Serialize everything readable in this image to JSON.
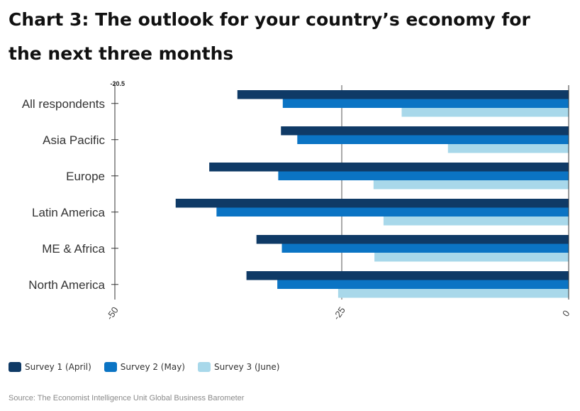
{
  "title": "Chart 3: The outlook for your country’s economy for the next three months",
  "source": "Source: The Economist Intelligence Unit Global Business Barometer",
  "colors": {
    "survey1": "#0f3a66",
    "survey2": "#0b74c4",
    "survey3": "#a8d8ea",
    "zero_line": "#333333",
    "grid_line": "#555555"
  },
  "chart_data": {
    "type": "bar",
    "orientation": "horizontal",
    "title": "Chart 3: The outlook for your country’s economy for the next three months",
    "categories": [
      "All respondents",
      "Asia Pacific",
      "Europe",
      "Latin America",
      "ME & Africa",
      "North America"
    ],
    "series": [
      {
        "name": "Survey 1 (April)",
        "color": "#0f3a66",
        "values": [
          -36.5,
          -31.7,
          -39.6,
          -43.3,
          -34.4,
          -35.5
        ]
      },
      {
        "name": "Survey 2 (May)",
        "color": "#0b74c4",
        "values": [
          -31.5,
          -29.9,
          -32.0,
          -38.8,
          -31.6,
          -32.1
        ]
      },
      {
        "name": "Survey 3 (June)",
        "color": "#a8d8ea",
        "values": [
          -18.4,
          -13.3,
          -21.5,
          -20.4,
          -21.4,
          -25.4
        ]
      }
    ],
    "x_ticks": [
      "-50",
      "-25",
      "0"
    ],
    "x_tick_values": [
      -50,
      -25,
      0
    ],
    "xlim": [
      -50,
      0
    ],
    "stray_axis_label": "-20.5",
    "grid": true,
    "legend_position": "bottom-left"
  }
}
